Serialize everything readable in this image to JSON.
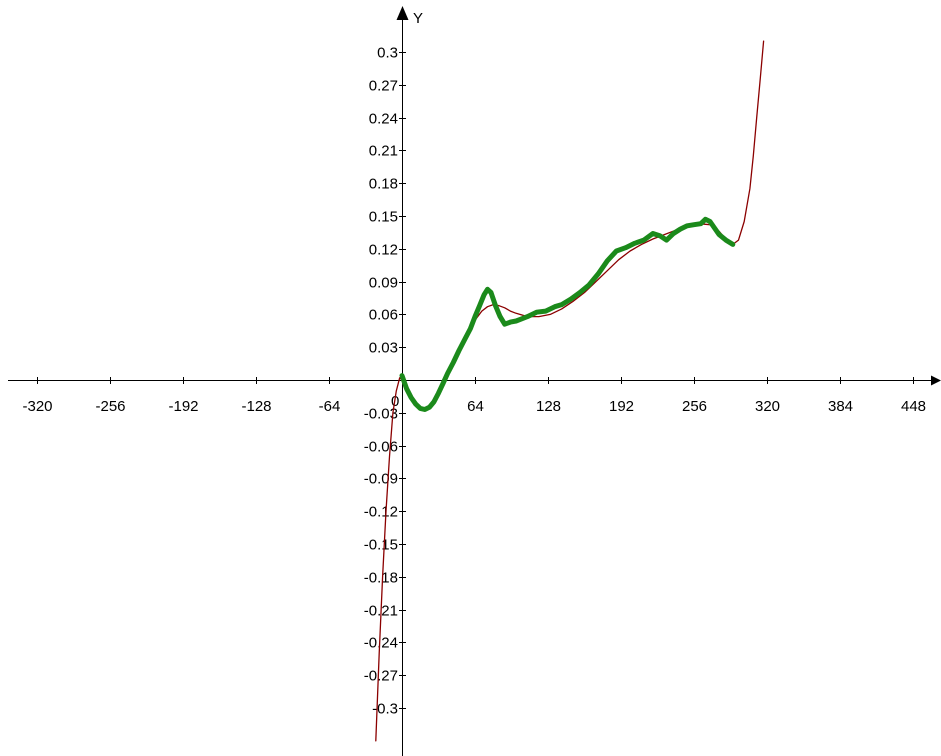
{
  "chart_data": {
    "type": "line",
    "xlabel": "",
    "ylabel": "Y",
    "xlim": [
      -350,
      470
    ],
    "ylim": [
      -0.33,
      0.33
    ],
    "x_ticks": [
      -320,
      -256,
      -192,
      -128,
      -64,
      64,
      128,
      192,
      256,
      320,
      384,
      448
    ],
    "y_ticks": [
      0.3,
      0.27,
      0.24,
      0.21,
      0.18,
      0.15,
      0.12,
      0.09,
      0.06,
      0.03,
      -0.03,
      -0.06,
      -0.09,
      -0.12,
      -0.15,
      -0.18,
      -0.21,
      -0.24,
      -0.27,
      -0.3
    ],
    "origin_label": "0",
    "grid": false,
    "series": [
      {
        "color": "#8b0000",
        "style": "thin",
        "x": [
          -23,
          -20,
          -17,
          -14,
          -11,
          -8,
          -5,
          -2,
          0,
          4,
          8,
          12,
          16,
          20,
          24,
          28,
          32,
          36,
          40,
          45,
          50,
          55,
          60,
          65,
          70,
          75,
          80,
          85,
          90,
          95,
          100,
          110,
          120,
          130,
          140,
          150,
          160,
          170,
          180,
          190,
          200,
          210,
          220,
          230,
          240,
          250,
          260,
          270,
          278,
          284,
          290,
          295,
          300,
          305,
          308,
          311,
          314,
          317
        ],
        "y": [
          -0.33,
          -0.25,
          -0.18,
          -0.12,
          -0.07,
          -0.03,
          -0.01,
          0.002,
          0.0,
          -0.008,
          -0.016,
          -0.022,
          -0.026,
          -0.027,
          -0.025,
          -0.02,
          -0.012,
          -0.003,
          0.006,
          0.016,
          0.027,
          0.037,
          0.047,
          0.056,
          0.063,
          0.067,
          0.069,
          0.068,
          0.066,
          0.063,
          0.061,
          0.058,
          0.058,
          0.06,
          0.065,
          0.072,
          0.08,
          0.09,
          0.1,
          0.11,
          0.118,
          0.124,
          0.129,
          0.133,
          0.137,
          0.141,
          0.143,
          0.142,
          0.136,
          0.129,
          0.124,
          0.128,
          0.145,
          0.175,
          0.205,
          0.24,
          0.275,
          0.31
        ]
      },
      {
        "color": "#1b8a1b",
        "style": "thick",
        "x": [
          0,
          4,
          8,
          12,
          16,
          20,
          24,
          28,
          32,
          36,
          40,
          45,
          50,
          55,
          60,
          64,
          68,
          72,
          75,
          78,
          82,
          86,
          90,
          95,
          100,
          105,
          110,
          118,
          126,
          134,
          140,
          148,
          156,
          164,
          172,
          180,
          188,
          196,
          204,
          212,
          220,
          226,
          232,
          238,
          244,
          250,
          256,
          262,
          266,
          270,
          274,
          278,
          284,
          290
        ],
        "y": [
          0.004,
          -0.008,
          -0.016,
          -0.022,
          -0.026,
          -0.027,
          -0.025,
          -0.02,
          -0.012,
          -0.003,
          0.006,
          0.016,
          0.027,
          0.037,
          0.047,
          0.058,
          0.068,
          0.078,
          0.083,
          0.08,
          0.068,
          0.058,
          0.051,
          0.053,
          0.054,
          0.056,
          0.058,
          0.062,
          0.063,
          0.067,
          0.069,
          0.074,
          0.08,
          0.087,
          0.097,
          0.109,
          0.118,
          0.121,
          0.125,
          0.128,
          0.134,
          0.132,
          0.128,
          0.134,
          0.138,
          0.141,
          0.142,
          0.143,
          0.147,
          0.145,
          0.139,
          0.133,
          0.128,
          0.124
        ]
      }
    ]
  }
}
